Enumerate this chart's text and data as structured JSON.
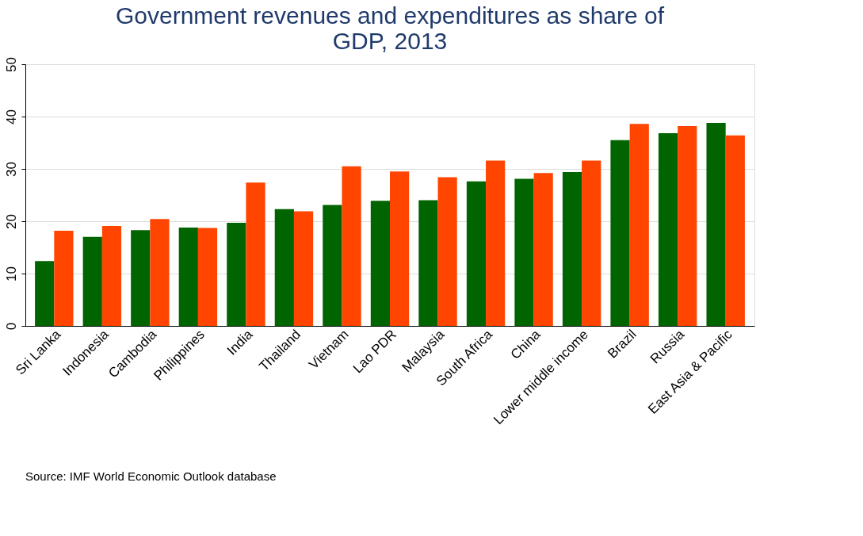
{
  "chart_data": {
    "type": "bar",
    "title": [
      "Government revenues and expenditures as share of",
      "GDP, 2013"
    ],
    "categories": [
      "Sri Lanka",
      "Indonesia",
      "Cambodia",
      "Philippines",
      "India",
      "Thailand",
      "Vietnam",
      "Lao PDR",
      "Malaysia",
      "South Africa",
      "China",
      "Lower middle income",
      "Brazil",
      "Russia",
      "East Asia & Pacific"
    ],
    "series": [
      {
        "color": "#006400",
        "values": [
          12.4,
          17.0,
          18.3,
          18.8,
          19.7,
          22.3,
          23.1,
          23.9,
          24.0,
          27.6,
          28.1,
          29.4,
          35.5,
          36.8,
          38.8
        ]
      },
      {
        "color": "#ff4500",
        "values": [
          18.2,
          19.1,
          20.4,
          18.7,
          27.4,
          21.9,
          30.5,
          29.5,
          28.4,
          31.6,
          29.2,
          31.6,
          38.6,
          38.2,
          36.4
        ]
      }
    ],
    "ylim": [
      0,
      50
    ],
    "yticks": [
      0,
      10,
      20,
      30,
      40,
      50
    ],
    "grid": "y",
    "legend": false,
    "annotations": [
      "Source: IMF World Economic Outlook database"
    ]
  }
}
